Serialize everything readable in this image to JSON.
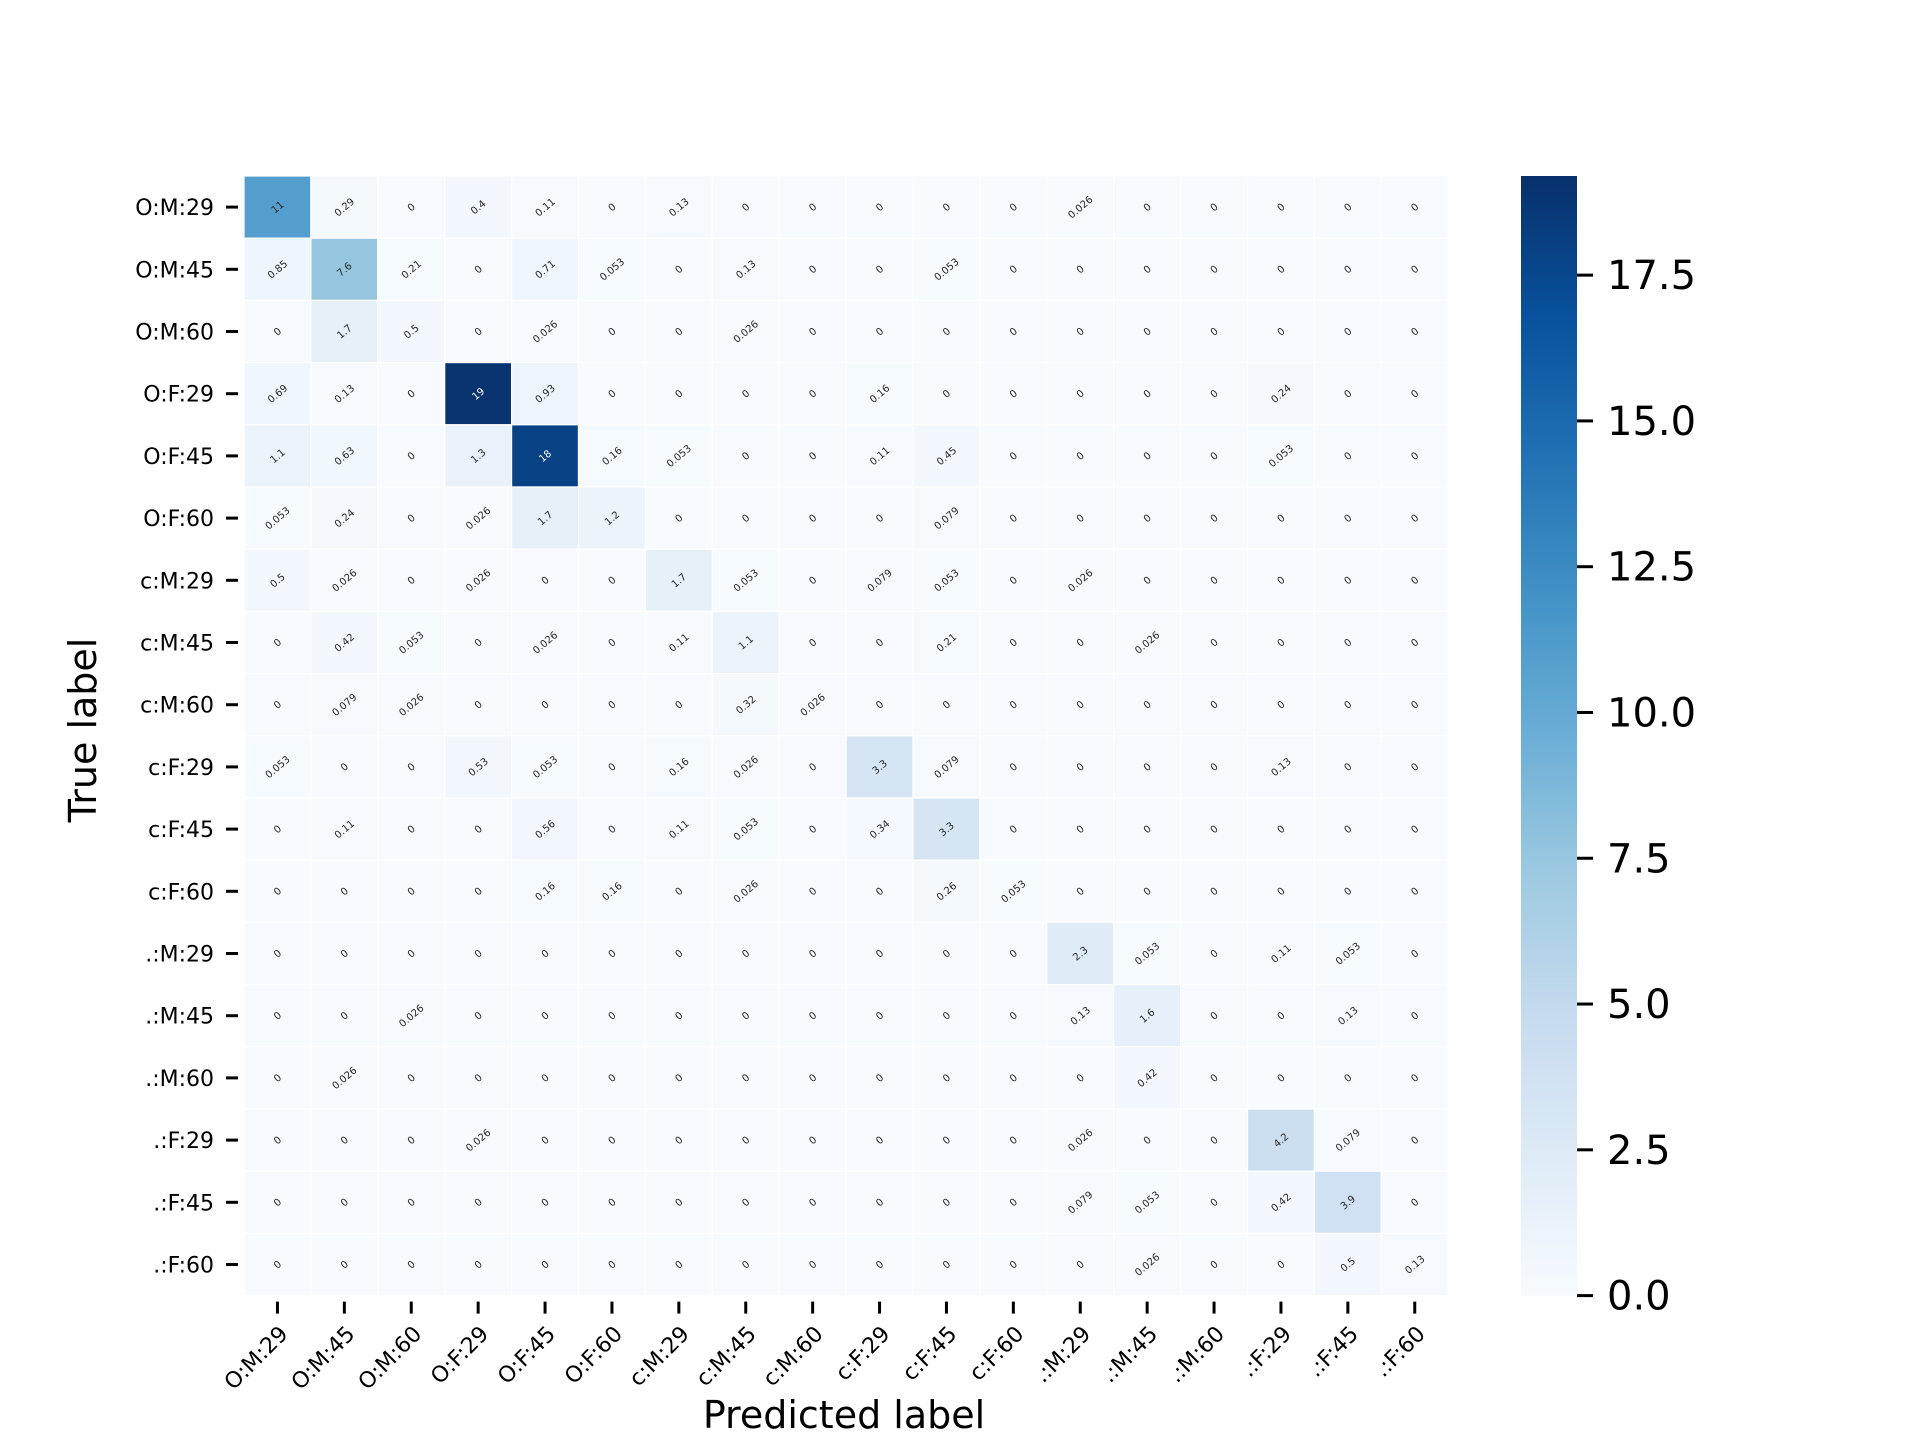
{
  "chart_data": {
    "type": "heatmap",
    "xlabel": "Predicted label",
    "ylabel": "True label",
    "x_categories": [
      "O:M:29",
      "O:M:45",
      "O:M:60",
      "O:F:29",
      "O:F:45",
      "O:F:60",
      "c:M:29",
      "c:M:45",
      "c:M:60",
      "c:F:29",
      "c:F:45",
      "c:F:60",
      ".:M:29",
      ".:M:45",
      ".:M:60",
      ".:F:29",
      ".:F:45",
      ".:F:60"
    ],
    "y_categories": [
      "O:M:29",
      "O:M:45",
      "O:M:60",
      "O:F:29",
      "O:F:45",
      "O:F:60",
      "c:M:29",
      "c:M:45",
      "c:M:60",
      "c:F:29",
      "c:F:45",
      "c:F:60",
      ".:M:29",
      ".:M:45",
      ".:M:60",
      ".:F:29",
      ".:F:45",
      ".:F:60"
    ],
    "values": [
      [
        "11",
        "0.29",
        "0",
        "0.4",
        "0.11",
        "0",
        "0.13",
        "0",
        "0",
        "0",
        "0",
        "0",
        "0.026",
        "0",
        "0",
        "0",
        "0",
        "0"
      ],
      [
        "0.85",
        "7.6",
        "0.21",
        "0",
        "0.71",
        "0.053",
        "0",
        "0.13",
        "0",
        "0",
        "0.053",
        "0",
        "0",
        "0",
        "0",
        "0",
        "0",
        "0"
      ],
      [
        "0",
        "1.7",
        "0.5",
        "0",
        "0.026",
        "0",
        "0",
        "0.026",
        "0",
        "0",
        "0",
        "0",
        "0",
        "0",
        "0",
        "0",
        "0",
        "0"
      ],
      [
        "0.69",
        "0.13",
        "0",
        "19",
        "0.93",
        "0",
        "0",
        "0",
        "0",
        "0.16",
        "0",
        "0",
        "0",
        "0",
        "0",
        "0.24",
        "0",
        "0"
      ],
      [
        "1.1",
        "0.63",
        "0",
        "1.3",
        "18",
        "0.16",
        "0.053",
        "0",
        "0",
        "0.11",
        "0.45",
        "0",
        "0",
        "0",
        "0",
        "0.053",
        "0",
        "0"
      ],
      [
        "0.053",
        "0.24",
        "0",
        "0.026",
        "1.7",
        "1.2",
        "0",
        "0",
        "0",
        "0",
        "0.079",
        "0",
        "0",
        "0",
        "0",
        "0",
        "0",
        "0"
      ],
      [
        "0.5",
        "0.026",
        "0",
        "0.026",
        "0",
        "0",
        "1.7",
        "0.053",
        "0",
        "0.079",
        "0.053",
        "0",
        "0.026",
        "0",
        "0",
        "0",
        "0",
        "0"
      ],
      [
        "0",
        "0.42",
        "0.053",
        "0",
        "0.026",
        "0",
        "0.11",
        "1.1",
        "0",
        "0",
        "0.21",
        "0",
        "0",
        "0.026",
        "0",
        "0",
        "0",
        "0"
      ],
      [
        "0",
        "0.079",
        "0.026",
        "0",
        "0",
        "0",
        "0",
        "0.32",
        "0.026",
        "0",
        "0",
        "0",
        "0",
        "0",
        "0",
        "0",
        "0",
        "0"
      ],
      [
        "0.053",
        "0",
        "0",
        "0.53",
        "0.053",
        "0",
        "0.16",
        "0.026",
        "0",
        "3.3",
        "0.079",
        "0",
        "0",
        "0",
        "0",
        "0.13",
        "0",
        "0"
      ],
      [
        "0",
        "0.11",
        "0",
        "0",
        "0.56",
        "0",
        "0.11",
        "0.053",
        "0",
        "0.34",
        "3.3",
        "0",
        "0",
        "0",
        "0",
        "0",
        "0",
        "0"
      ],
      [
        "0",
        "0",
        "0",
        "0",
        "0.16",
        "0.16",
        "0",
        "0.026",
        "0",
        "0",
        "0.26",
        "0.053",
        "0",
        "0",
        "0",
        "0",
        "0",
        "0"
      ],
      [
        "0",
        "0",
        "0",
        "0",
        "0",
        "0",
        "0",
        "0",
        "0",
        "0",
        "0",
        "0",
        "2.3",
        "0.053",
        "0",
        "0.11",
        "0.053",
        "0"
      ],
      [
        "0",
        "0",
        "0.026",
        "0",
        "0",
        "0",
        "0",
        "0",
        "0",
        "0",
        "0",
        "0",
        "0.13",
        "1.6",
        "0",
        "0",
        "0.13",
        "0"
      ],
      [
        "0",
        "0.026",
        "0",
        "0",
        "0",
        "0",
        "0",
        "0",
        "0",
        "0",
        "0",
        "0",
        "0",
        "0.42",
        "0",
        "0",
        "0",
        "0"
      ],
      [
        "0",
        "0",
        "0",
        "0.026",
        "0",
        "0",
        "0",
        "0",
        "0",
        "0",
        "0",
        "0",
        "0.026",
        "0",
        "0",
        "4.2",
        "0.079",
        "0"
      ],
      [
        "0",
        "0",
        "0",
        "0",
        "0",
        "0",
        "0",
        "0",
        "0",
        "0",
        "0",
        "0",
        "0.079",
        "0.053",
        "0",
        "0.42",
        "3.9",
        "0"
      ],
      [
        "0",
        "0",
        "0",
        "0",
        "0",
        "0",
        "0",
        "0",
        "0",
        "0",
        "0",
        "0",
        "0",
        "0.026",
        "0",
        "0",
        "0.5",
        "0.13"
      ]
    ],
    "colormap": "Blues",
    "vmin": 0,
    "vmax": 19.2,
    "colorbar_ticks": [
      "0.0",
      "2.5",
      "5.0",
      "7.5",
      "10.0",
      "12.5",
      "15.0",
      "17.5"
    ],
    "grid": false,
    "legend": "colorbar right"
  }
}
